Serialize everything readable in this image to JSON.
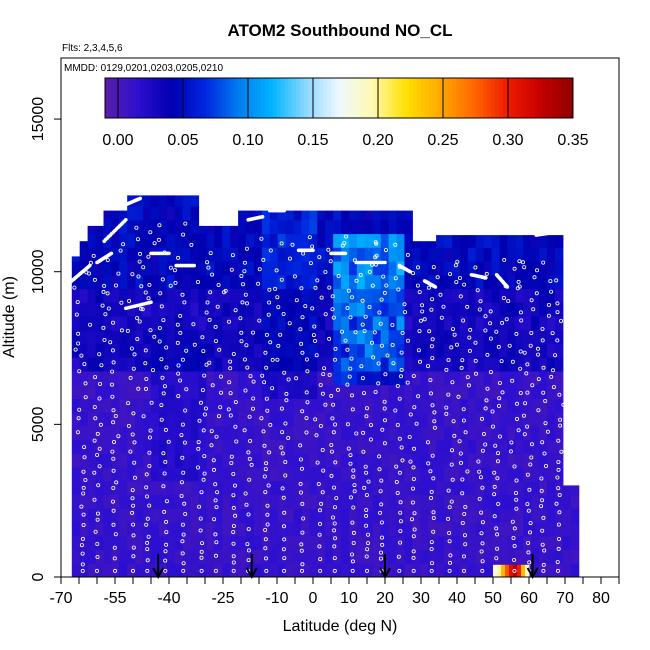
{
  "chart_data": {
    "type": "heatmap",
    "title": "ATOM2 Southbound NO_CL",
    "flights_note": "Flts: 2,3,4,5,6",
    "dates_note": "MMDD: 0129,0201,0203,0205,0210",
    "xlabel": "Latitude (deg N)",
    "ylabel": "Altitude (m)",
    "xlim": [
      -70,
      85
    ],
    "ylim": [
      0,
      17000
    ],
    "x_ticks": [
      -70,
      -65,
      -60,
      -55,
      -50,
      -45,
      -40,
      -35,
      -30,
      -25,
      -20,
      -15,
      -10,
      -5,
      0,
      5,
      10,
      15,
      20,
      25,
      30,
      35,
      40,
      45,
      50,
      55,
      60,
      65,
      70,
      75,
      80,
      85
    ],
    "x_tick_labels": [
      {
        "value": -70,
        "text": "-70"
      },
      {
        "value": -55,
        "text": "-55"
      },
      {
        "value": -40,
        "text": "-40"
      },
      {
        "value": -25,
        "text": "-25"
      },
      {
        "value": -10,
        "text": "-10"
      },
      {
        "value": 0,
        "text": "0"
      },
      {
        "value": 10,
        "text": "10"
      },
      {
        "value": 20,
        "text": "20"
      },
      {
        "value": 30,
        "text": "30"
      },
      {
        "value": 40,
        "text": "40"
      },
      {
        "value": 50,
        "text": "50"
      },
      {
        "value": 60,
        "text": "60"
      },
      {
        "value": 70,
        "text": "70"
      },
      {
        "value": 80,
        "text": "80"
      }
    ],
    "y_ticks": [
      {
        "value": 0,
        "text": "0"
      },
      {
        "value": 5000,
        "text": "5000"
      },
      {
        "value": 10000,
        "text": "10000"
      },
      {
        "value": 15000,
        "text": "15000"
      }
    ],
    "colorbar": {
      "min": -0.01,
      "max": 0.35,
      "ticks": [
        {
          "value": 0.0,
          "text": "0.00"
        },
        {
          "value": 0.05,
          "text": "0.05"
        },
        {
          "value": 0.1,
          "text": "0.10"
        },
        {
          "value": 0.15,
          "text": "0.15"
        },
        {
          "value": 0.2,
          "text": "0.20"
        },
        {
          "value": 0.25,
          "text": "0.25"
        },
        {
          "value": 0.3,
          "text": "0.30"
        },
        {
          "value": 0.35,
          "text": "0.35"
        }
      ],
      "stops": [
        "#5a1fa8",
        "#2d0fd0",
        "#0000b0",
        "#0026e0",
        "#007cf0",
        "#00b4ff",
        "#8cd8ff",
        "#f0f8ff",
        "#fff9b0",
        "#ffe000",
        "#ffaa00",
        "#ff6a00",
        "#f01e00",
        "#c80000",
        "#8c0000"
      ]
    },
    "arrow_latitudes": [
      -43,
      -17,
      20,
      61
    ],
    "high_value_patch": {
      "lat_range": [
        50,
        60
      ],
      "alt_range": [
        0,
        400
      ],
      "values": [
        0.18,
        0.2,
        0.24,
        0.28,
        0.31,
        0.33,
        0.3,
        0.24,
        0.19
      ]
    },
    "field_extent": {
      "lat_range": [
        -67,
        72
      ],
      "alt_range": [
        0,
        12500
      ]
    }
  }
}
